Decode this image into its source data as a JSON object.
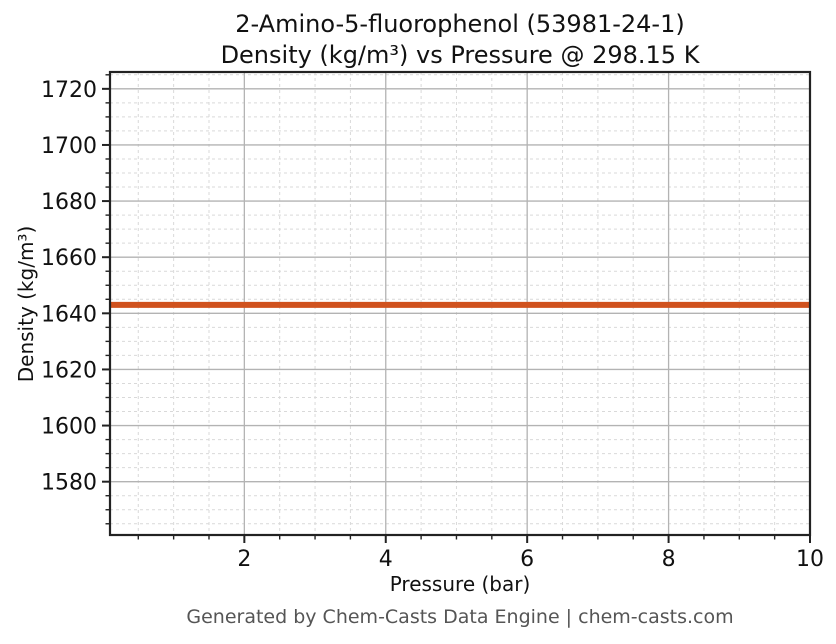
{
  "page": {
    "background": "#ffffff"
  },
  "chart_data": {
    "type": "line",
    "title_line1": "2-Amino-5-fluorophenol (53981-24-1)",
    "title_line2": "Density (kg/m³) vs Pressure @ 298.15 K",
    "compound": "2-Amino-5-fluorophenol",
    "cas_number": "53981-24-1",
    "temperature_label": "298.15 K",
    "xlabel": "Pressure (bar)",
    "ylabel": "Density (kg/m³)",
    "xlim": [
      0.1,
      10
    ],
    "ylim": [
      1561,
      1726
    ],
    "x_major_ticks": [
      2,
      4,
      6,
      8,
      10
    ],
    "x_minor_step": 0.5,
    "y_major_ticks": [
      1580,
      1600,
      1620,
      1640,
      1660,
      1680,
      1700,
      1720
    ],
    "y_minor_step": 5,
    "grid": {
      "major": "solid",
      "minor": "dashed"
    },
    "legend": "none",
    "series": [
      {
        "name": "Density",
        "units": "kg/m³",
        "color": "#d0521e",
        "x": [
          0.1,
          10
        ],
        "y": [
          1643,
          1643
        ]
      }
    ]
  },
  "footer": {
    "text": "Generated by Chem-Casts Data Engine | chem-casts.com"
  },
  "colors": {
    "background": "#ffffff",
    "spine": "#222222",
    "major_grid": "#b3b3b3",
    "minor_grid": "#d9d9d9",
    "title_text": "#111111",
    "tick_label": "#111111",
    "footer_text": "#555555",
    "line": "#d0521e"
  }
}
